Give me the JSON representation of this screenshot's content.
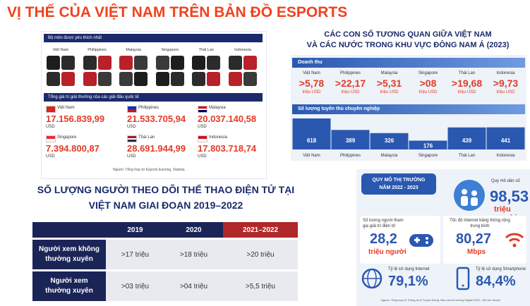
{
  "title": "VỊ THẾ CỦA VIỆT NAM TRÊN BẢN ĐỒ ESPORTS",
  "favorite_games": {
    "heading": "Bộ môn được yêu thích nhất",
    "countries": [
      "Việt Nam",
      "Philippines",
      "Malaysia",
      "Singapore",
      "Thái Lan",
      "Indonesia"
    ]
  },
  "prize_pool": {
    "heading": "Tổng giá trị giải thưởng của các giải đấu quốc tế",
    "items": [
      {
        "country": "Việt Nam",
        "value": "17.156.839,99",
        "unit": "USD"
      },
      {
        "country": "Philippines",
        "value": "21.533.705,94",
        "unit": "USD"
      },
      {
        "country": "Malaysia",
        "value": "20.037.140,58",
        "unit": "USD"
      },
      {
        "country": "Singapore",
        "value": "7.394.800,87",
        "unit": "USD"
      },
      {
        "country": "Thái Lan",
        "value": "28.691.944,99",
        "unit": "USD"
      },
      {
        "country": "Indonesia",
        "value": "17.803.718,74",
        "unit": "USD"
      }
    ],
    "source": "Nguồn: Tổng hợp từ Esports Earning, Statista"
  },
  "regional": {
    "title_line1": "CÁC CON SỐ TƯƠNG QUAN GIỮA VIỆT NAM",
    "title_line2": "VÀ CÁC NƯỚC TRONG KHU VỰC ĐÔNG NAM Á (2023)",
    "revenue": {
      "heading": "Doanh thu",
      "items": [
        {
          "country": "Việt Nam",
          "value": ">5,78",
          "unit": "triệu USD"
        },
        {
          "country": "Philippines",
          "value": ">22,17",
          "unit": "triệu USD"
        },
        {
          "country": "Malaysia",
          "value": ">5,31",
          "unit": "triệu USD"
        },
        {
          "country": "Singapore",
          "value": ">08",
          "unit": "triệu USD"
        },
        {
          "country": "Thái Lan",
          "value": ">19,68",
          "unit": "triệu USD"
        },
        {
          "country": "Indonesia",
          "value": ">9,73",
          "unit": "triệu USD"
        }
      ]
    },
    "players": {
      "heading": "Số lượng tuyển thủ chuyên nghiệp",
      "categories": [
        "Việt Nam",
        "Philippines",
        "Malaysia",
        "Singapore",
        "Thái Lan",
        "Indonesia"
      ],
      "values": [
        618,
        389,
        326,
        176,
        439,
        441
      ]
    }
  },
  "viewers": {
    "title_line1": "SỐ LƯỢNG NGƯỜI THEO DÕI THỂ THAO ĐIỆN TỬ TẠI",
    "title_line2": "VIỆT NAM GIAI ĐOẠN 2019–2022",
    "columns": [
      "2019",
      "2020",
      "2021–2022"
    ],
    "rows": [
      {
        "label": "Người xem không thường xuyên",
        "cells": [
          ">17 triệu",
          ">18 triệu",
          ">20 triệu"
        ]
      },
      {
        "label": "Người xem thường xuyên",
        "cells": [
          ">03 triệu",
          ">04 triệu",
          ">5,5 triệu"
        ]
      }
    ]
  },
  "market": {
    "heading_line1": "QUY MÔ THỊ TRƯỜNG",
    "heading_line2": "NĂM 2022 - 2023",
    "population": {
      "label": "Quy mô dân số",
      "value": "98,53",
      "unit": "triệu người"
    },
    "gamers": {
      "label": "Số lượng người tham gia giải trí điện tử",
      "value": "28,2",
      "unit": "triệu người"
    },
    "internet_speed": {
      "label": "Tốc độ Internet băng thông rộng trung bình",
      "value": "80,27",
      "unit": "Mbps"
    },
    "internet_usage": {
      "label": "Tỷ lệ sử dụng Internet",
      "value": "79,1%"
    },
    "smartphone_usage": {
      "label": "Tỷ lệ sử dụng Smartphone",
      "value": "84,4%"
    },
    "source": "Nguồn: Tổng hợp từ Thông tin & Truyền thông, Báo cáo thị trường Digital 2023 - We Are Social"
  }
}
